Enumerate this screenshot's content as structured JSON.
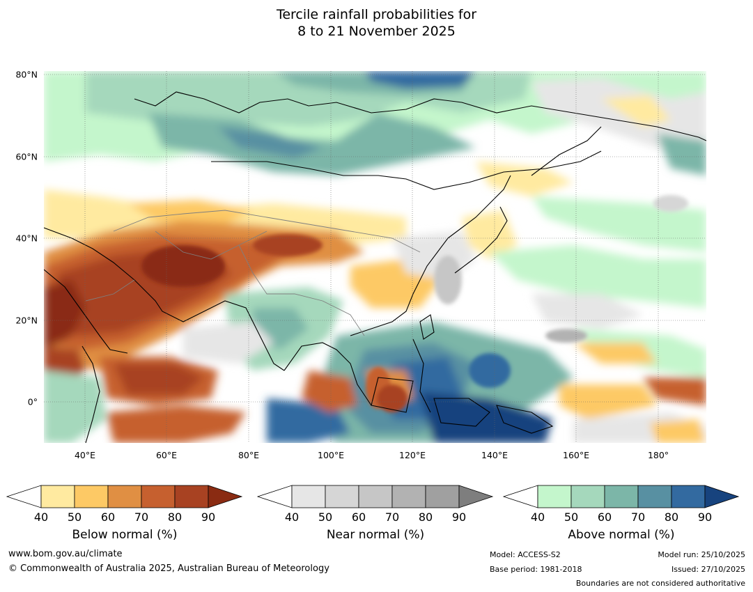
{
  "title": {
    "line1": "Tercile rainfall probabilities for",
    "line2": "8 to 21 November 2025"
  },
  "map": {
    "lat_labels": [
      "80°N",
      "60°N",
      "40°N",
      "20°N",
      "0°"
    ],
    "lon_labels": [
      "40°E",
      "60°E",
      "80°E",
      "100°E",
      "120°E",
      "140°E",
      "160°E",
      "180°"
    ],
    "lat_range": [
      -10,
      80
    ],
    "lon_range": [
      30,
      192
    ],
    "gridlines": "dotted",
    "colors": {
      "below": [
        "#ffeaa0",
        "#fdc965",
        "#e08f43",
        "#c6602f",
        "#a84222",
        "#8a2b12"
      ],
      "near": [
        "#e6e6e6",
        "#d6d6d6",
        "#c6c6c6",
        "#b2b2b2",
        "#a0a0a0",
        "#7e7e7e"
      ],
      "above": [
        "#c4f6cc",
        "#a5d8bc",
        "#7cb6a8",
        "#5890a2",
        "#336aa0",
        "#17437e"
      ]
    }
  },
  "legend": {
    "tick_labels": [
      "40",
      "50",
      "60",
      "70",
      "80",
      "90"
    ],
    "below_label": "Below normal (%)",
    "near_label": "Near normal (%)",
    "above_label": "Above normal (%)"
  },
  "footer": {
    "website": "www.bom.gov.au/climate",
    "copyright": "© Commonwealth of Australia 2025, Australian Bureau of Meteorology",
    "model": "Model: ACCESS-S2",
    "base_period": "Base period: 1981-2018",
    "model_run": "Model run: 25/10/2025",
    "issued": "Issued: 27/10/2025",
    "disclaimer": "Boundaries are not considered authoritative"
  }
}
